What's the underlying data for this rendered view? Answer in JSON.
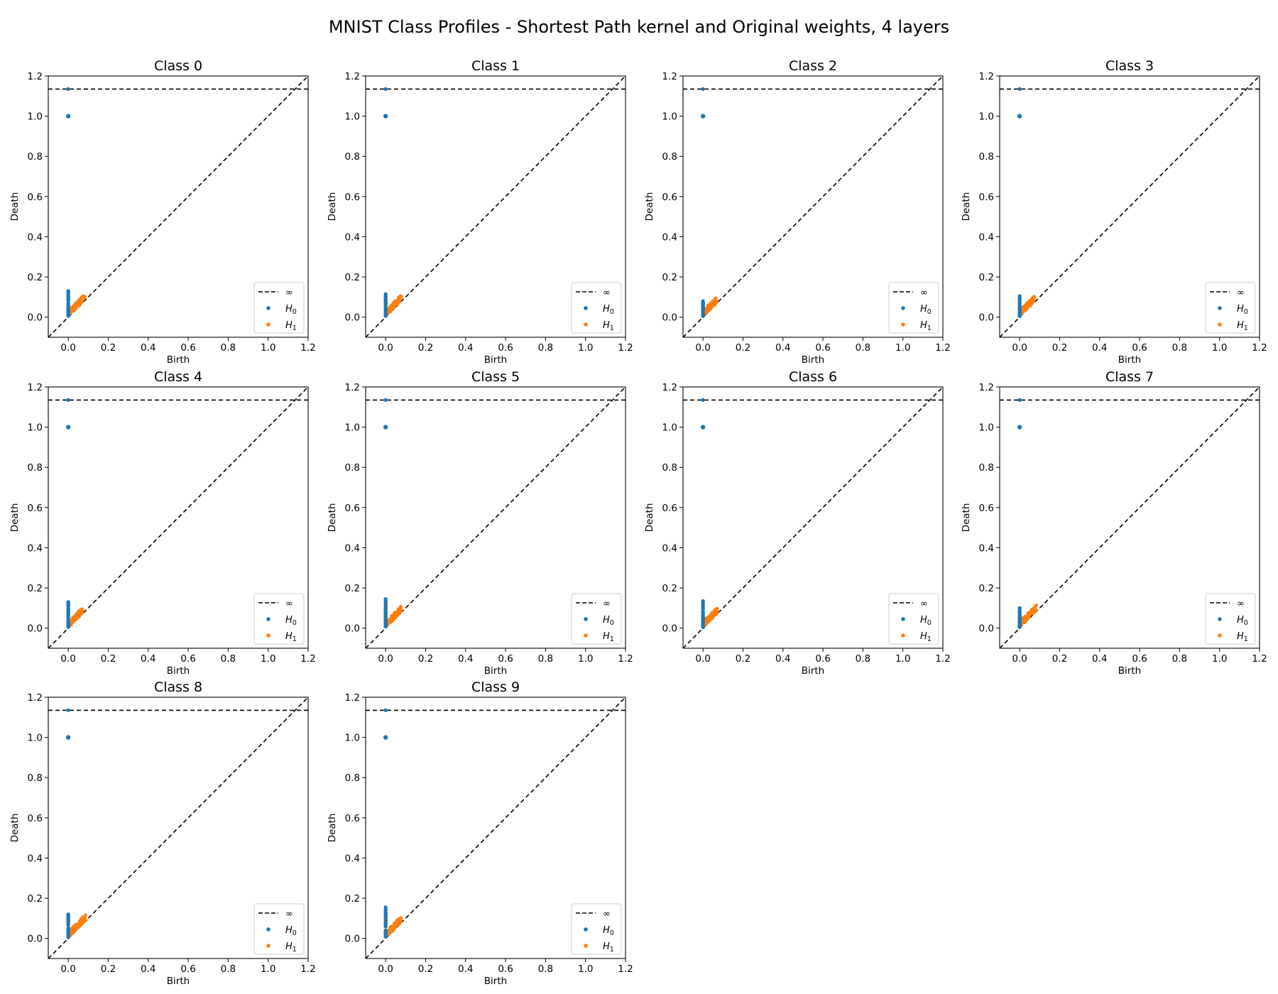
{
  "title": "MNIST Class Profiles - Shortest Path kernel and Original weights, 4 layers",
  "colors": {
    "h0": "#1f77b4",
    "h1": "#ff7f0e",
    "lines": "#000000"
  },
  "chart_data": {
    "type": "scatter",
    "xlabel": "Birth",
    "ylabel": "Death",
    "xlim": [
      -0.1,
      1.2
    ],
    "ylim": [
      -0.1,
      1.2
    ],
    "xticks": [
      "0.0",
      "0.2",
      "0.4",
      "0.6",
      "0.8",
      "1.0",
      "1.2"
    ],
    "yticks": [
      "0.0",
      "0.2",
      "0.4",
      "0.6",
      "0.8",
      "1.0",
      "1.2"
    ],
    "infinity_y": 1.135,
    "grid": false,
    "legend": {
      "placement": "lower-right",
      "entries": [
        {
          "label": "∞",
          "style": "dashed-line"
        },
        {
          "label": "H",
          "sub": "0",
          "style": "point",
          "color": "#1f77b4"
        },
        {
          "label": "H",
          "sub": "1",
          "style": "point",
          "color": "#ff7f0e"
        }
      ]
    },
    "panels": [
      {
        "title": "Class 0",
        "show_xlabel": true,
        "h0_max_death": 0.13,
        "h1_max": 0.08
      },
      {
        "title": "Class 1",
        "show_xlabel": true,
        "h0_max_death": 0.115,
        "h1_max": 0.075
      },
      {
        "title": "Class 2",
        "show_xlabel": true,
        "h0_max_death": 0.08,
        "h1_max": 0.065
      },
      {
        "title": "Class 3",
        "show_xlabel": true,
        "h0_max_death": 0.105,
        "h1_max": 0.07
      },
      {
        "title": "Class 4",
        "show_xlabel": true,
        "h0_max_death": 0.13,
        "h1_max": 0.07
      },
      {
        "title": "Class 5",
        "show_xlabel": true,
        "h0_max_death": 0.145,
        "h1_max": 0.075
      },
      {
        "title": "Class 6",
        "show_xlabel": true,
        "h0_max_death": 0.135,
        "h1_max": 0.07
      },
      {
        "title": "Class 7",
        "show_xlabel": true,
        "h0_max_death": 0.1,
        "h1_max": 0.08
      },
      {
        "title": "Class 8",
        "show_xlabel": true,
        "h0_max_death": 0.12,
        "h1_max": 0.085
      },
      {
        "title": "Class 9",
        "show_xlabel": true,
        "h0_max_death": 0.155,
        "h1_max": 0.075
      }
    ]
  }
}
